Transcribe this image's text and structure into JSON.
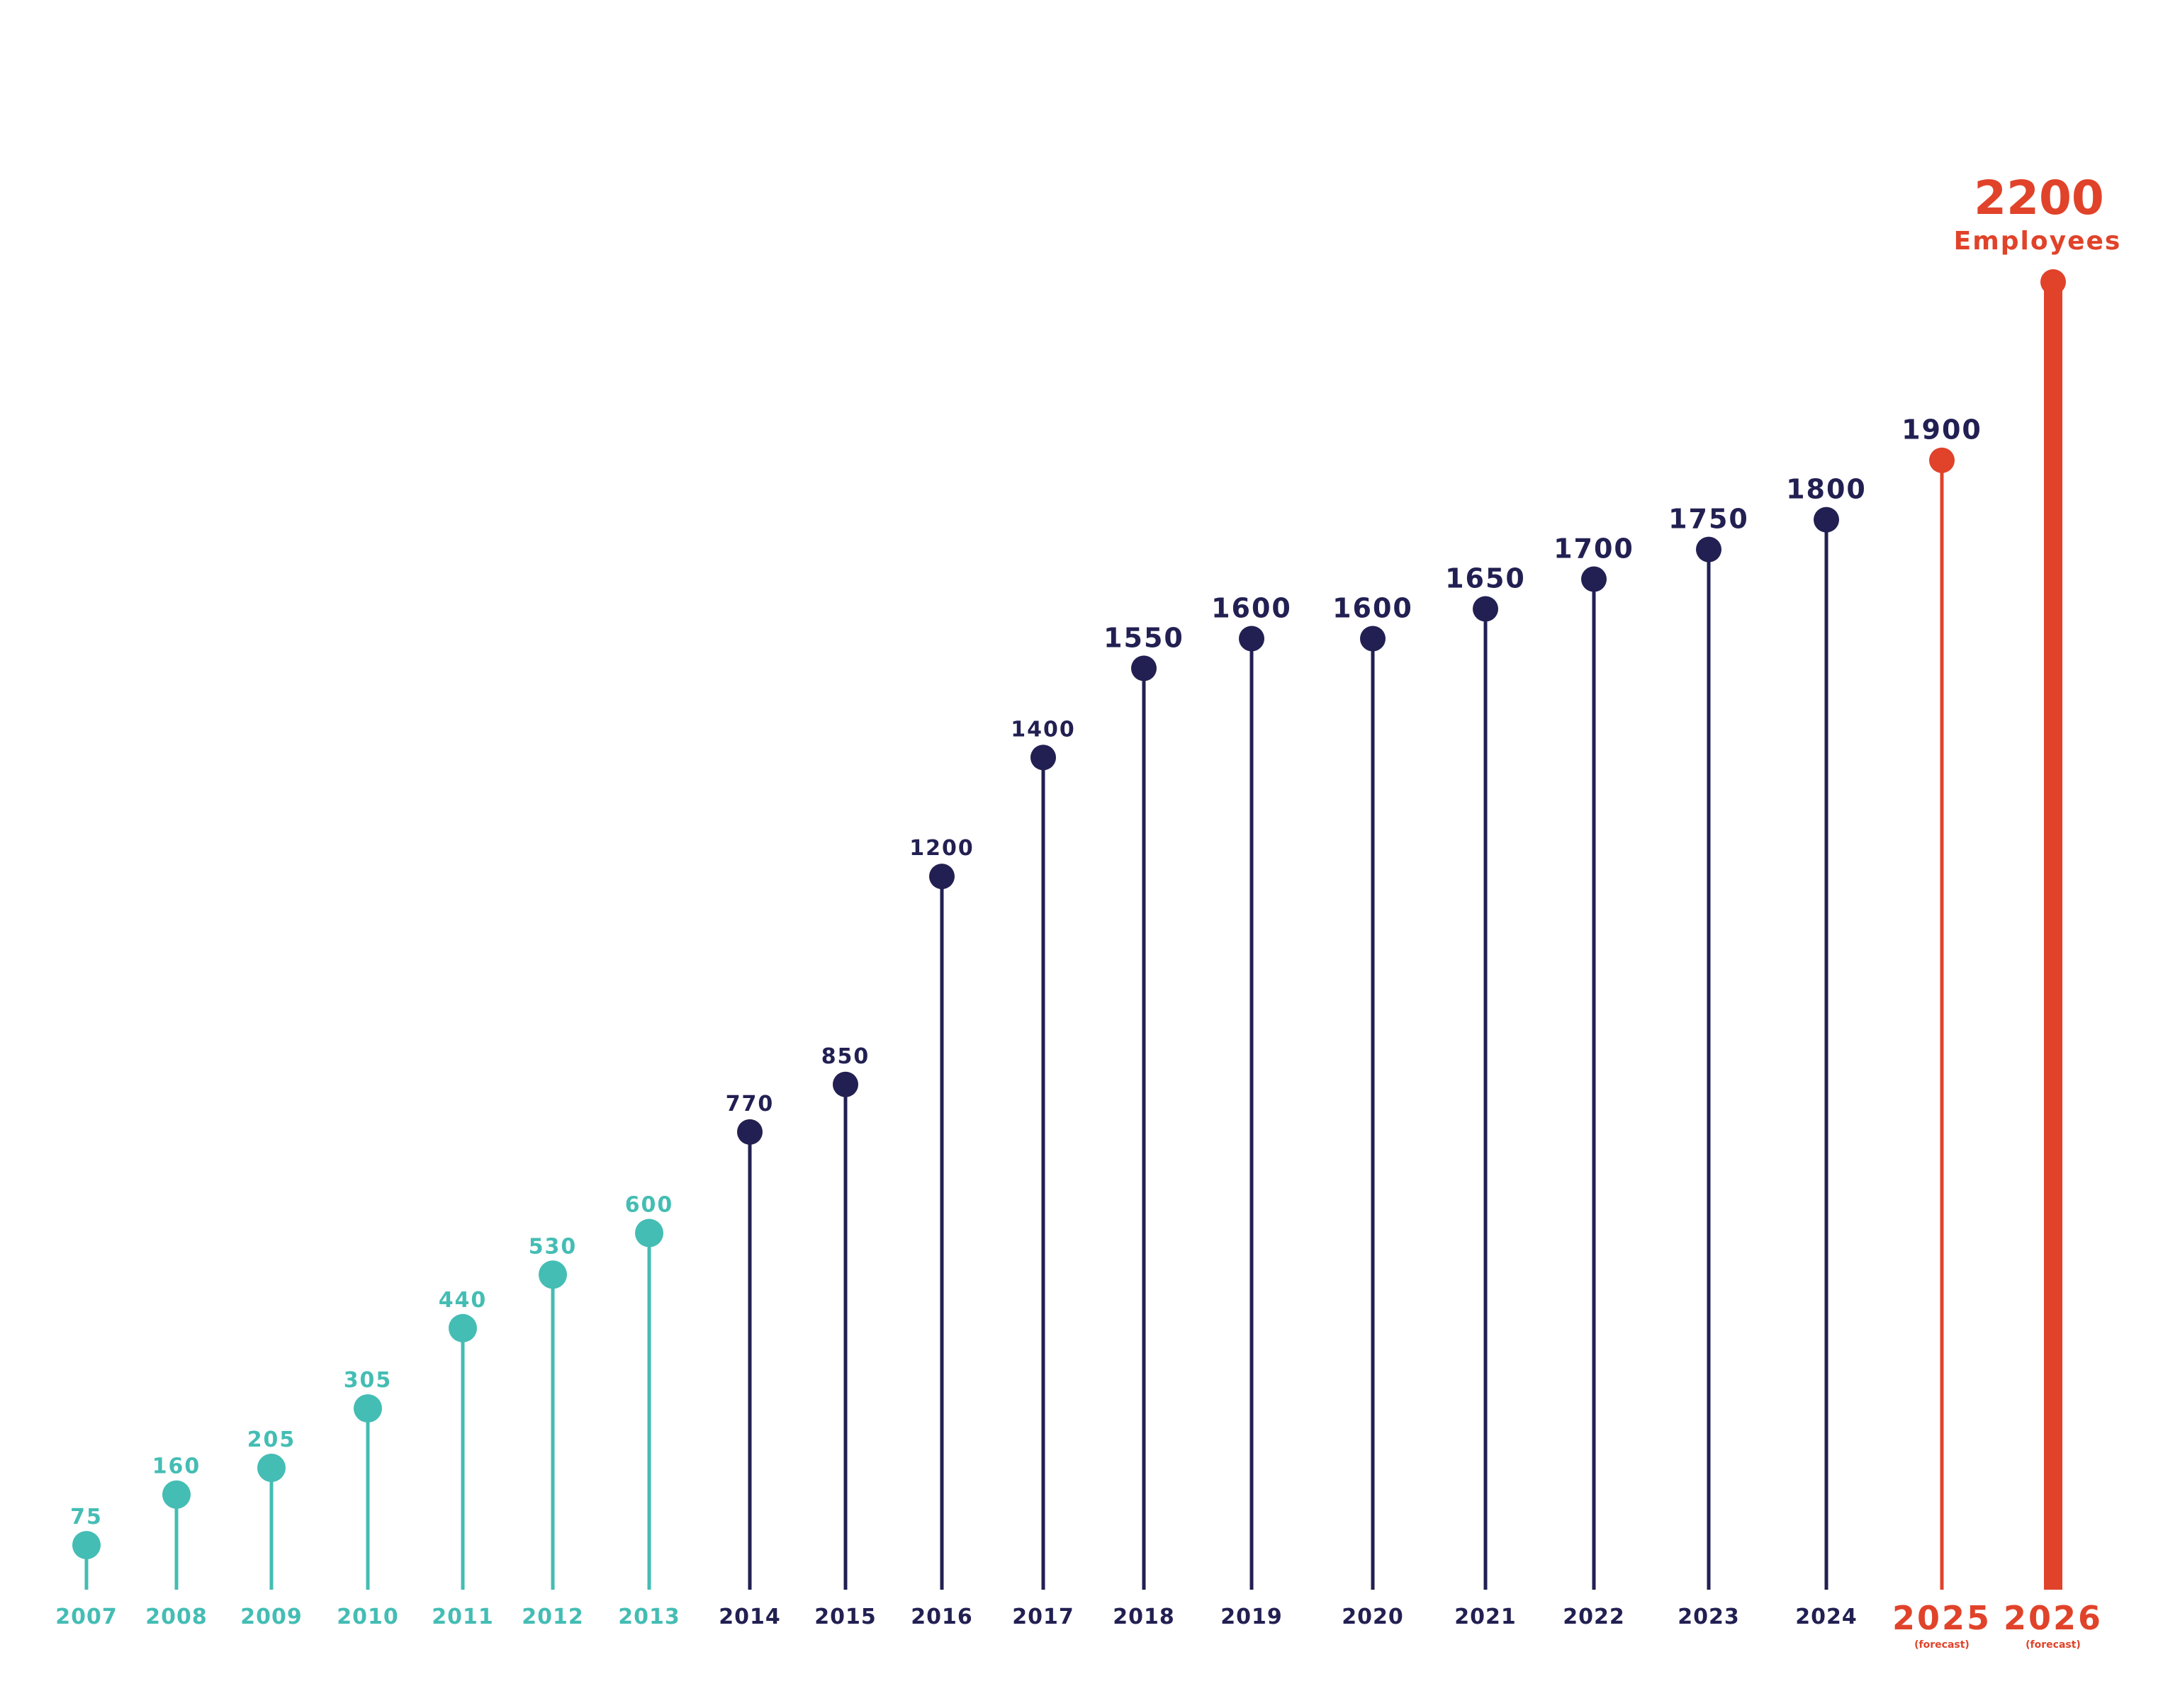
{
  "chart_data": {
    "type": "line",
    "title": "",
    "xlabel": "",
    "ylabel": "",
    "ylim": [
      0,
      2200
    ],
    "grid": false,
    "legend": "none",
    "categories": [
      "2007",
      "2008",
      "2009",
      "2010",
      "2011",
      "2012",
      "2013",
      "2014",
      "2015",
      "2016",
      "2017",
      "2018",
      "2019",
      "2020",
      "2021",
      "2022",
      "2023",
      "2024",
      "2025",
      "2026"
    ],
    "values": [
      75,
      160,
      205,
      305,
      440,
      530,
      600,
      770,
      850,
      1200,
      1400,
      1550,
      1600,
      1600,
      1650,
      1700,
      1750,
      1800,
      1900,
      2200
    ],
    "point_labels": [
      "75",
      "160",
      "205",
      "305",
      "440",
      "530",
      "600",
      "770",
      "850",
      "1200",
      "1400",
      "1550",
      "1600",
      "1600",
      "1650",
      "1700",
      "1750",
      "1800",
      "1900",
      "2200"
    ],
    "groups": [
      "early",
      "early",
      "early",
      "early",
      "early",
      "early",
      "early",
      "main",
      "main",
      "main",
      "main",
      "main",
      "main",
      "main",
      "main",
      "main",
      "main",
      "main",
      "forecast",
      "forecast"
    ],
    "forecast_note": "(forecast)",
    "highlight_unit": "Employees",
    "colors": {
      "early": "#44bdb4",
      "main": "#222052",
      "forecast": "#e0432a",
      "background": "#ffffff"
    }
  }
}
